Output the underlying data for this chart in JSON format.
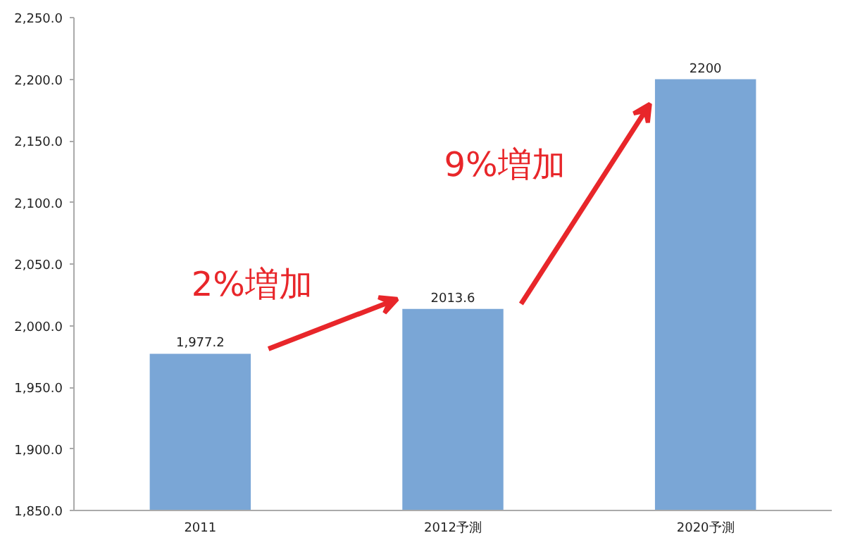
{
  "chart_data": {
    "type": "bar",
    "categories": [
      "2011",
      "2012予測",
      "2020予測"
    ],
    "values": [
      1977.2,
      2013.6,
      2200
    ],
    "value_labels": [
      "1,977.2",
      "2013.6",
      "2200"
    ],
    "color": "#7aa6d6",
    "ylim": [
      1850,
      2250
    ],
    "yticks": [
      {
        "value": 1850,
        "label": "1,850.0"
      },
      {
        "value": 1900,
        "label": "1,900.0"
      },
      {
        "value": 1950,
        "label": "1,950.0"
      },
      {
        "value": 2000,
        "label": "2,000.0"
      },
      {
        "value": 2050,
        "label": "2,050.0"
      },
      {
        "value": 2100,
        "label": "2,100.0"
      },
      {
        "value": 2150,
        "label": "2,150.0"
      },
      {
        "value": 2200,
        "label": "2,200.0"
      },
      {
        "value": 2250,
        "label": "2,250.0"
      }
    ],
    "annotations": [
      "2%増加",
      "9%増加"
    ],
    "grid": false
  }
}
